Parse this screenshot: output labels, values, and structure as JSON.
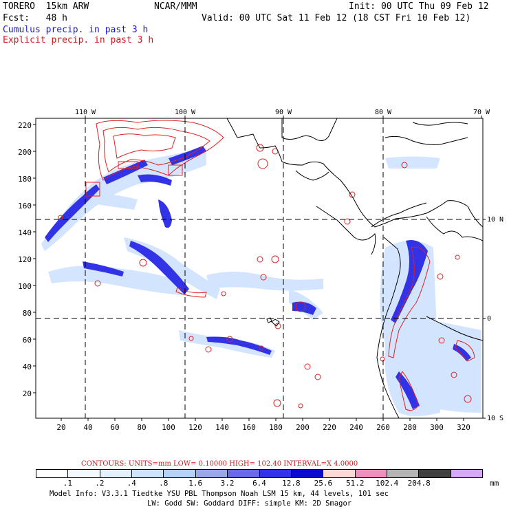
{
  "header": {
    "model": "TORERO  15km ARW",
    "org": "NCAR/MMM",
    "init": "Init: 00 UTC Thu 09 Feb 12",
    "fcst": "Fcst:   48 h",
    "valid": "Valid: 00 UTC Sat 11 Feb 12 (18 CST Fri 10 Feb 12)",
    "line_cumulus": "Cumulus precip. in past 3 h",
    "line_explicit": "Explicit precip. in past 3 h"
  },
  "colors": {
    "cumulus_text": "#1818c8",
    "explicit_text": "#d01818",
    "land_outline": "#000000"
  },
  "top_axis": {
    "labels": [
      "110 W",
      "100 W",
      "90 W",
      "80 W",
      "70 W"
    ]
  },
  "left_axis": {
    "labels": [
      "220",
      "200",
      "180",
      "160",
      "140",
      "120",
      "100",
      "80",
      "60",
      "40",
      "20"
    ]
  },
  "bottom_axis": {
    "labels": [
      "20",
      "40",
      "60",
      "80",
      "100",
      "120",
      "140",
      "160",
      "180",
      "200",
      "220",
      "240",
      "260",
      "280",
      "300",
      "320"
    ]
  },
  "right_axis": {
    "labels": [
      "10 N",
      "0",
      "10 S"
    ]
  },
  "contours_line": {
    "text": "CONTOURS:  UNITS=mm  LOW= 0.10000      HIGH=  102.40      INTERVAL=X  4.0000"
  },
  "colorbar": {
    "unit": "mm",
    "labels": [
      ".1",
      ".2",
      ".4",
      ".8",
      "1.6",
      "3.2",
      "6.4",
      "12.8",
      "25.6",
      "51.2",
      "102.4",
      "204.8"
    ],
    "colors": [
      "#ffffff",
      "#f4f8ff",
      "#e2f0ff",
      "#cce4ff",
      "#b4d2fa",
      "#9aa6f0",
      "#6a6ae8",
      "#3232e6",
      "#0a0ad0",
      "#ffd8d8",
      "#f090c0",
      "#b4b4b4",
      "#404040",
      "#d8a8f8"
    ]
  },
  "footer": {
    "line1": "Model Info: V3.3.1    Tiedtke YSU PBL   Thompson    Noah LSM  15 km,   44 levels,  101 sec",
    "line2": "LW: Godd SW: Goddard DIFF: simple KM: 2D Smagor"
  }
}
